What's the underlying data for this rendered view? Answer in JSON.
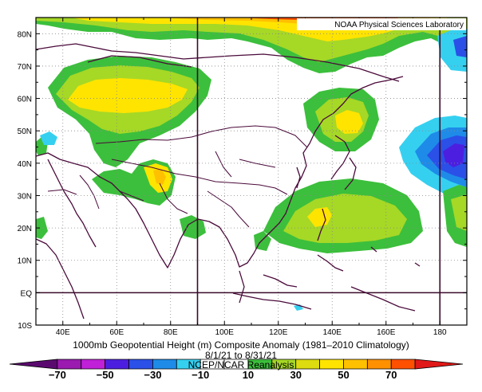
{
  "map": {
    "credit": "NOAA Physical Sciences Laboratory",
    "lon_labels": [
      "40E",
      "60E",
      "80E",
      "100E",
      "120E",
      "140E",
      "160E",
      "180"
    ],
    "lon_values": [
      40,
      60,
      80,
      100,
      120,
      140,
      160,
      180
    ],
    "lat_labels": [
      "80N",
      "70N",
      "60N",
      "50N",
      "40N",
      "30N",
      "20N",
      "10N",
      "EQ",
      "10S"
    ],
    "lat_values": [
      80,
      70,
      60,
      50,
      40,
      30,
      20,
      10,
      0,
      -10
    ],
    "lon_range": [
      30,
      190
    ],
    "lat_range": [
      -10,
      85
    ],
    "highlight_meridians": [
      90,
      180
    ],
    "highlight_parallel": 0
  },
  "caption": {
    "title": "1000mb Geopotential Height (m) Composite Anomaly (1981–2010 Climatology)",
    "dates": "8/1/21  to 8/31/21",
    "source": "NCEP/NCAR Reanalysis"
  },
  "colorbar": {
    "colors": [
      "#5a0a6e",
      "#9b1ab0",
      "#c020d8",
      "#4c1fe0",
      "#2a50e8",
      "#1e8be8",
      "#35d0f0",
      "#ffffff",
      "#ffffff",
      "#3cbf3c",
      "#a6d826",
      "#dcdc10",
      "#ffe400",
      "#ffc000",
      "#ff9000",
      "#ff5000",
      "#e01818"
    ],
    "tick_labels": [
      "−70",
      "−50",
      "−30",
      "−10",
      "10",
      "30",
      "50",
      "70"
    ]
  }
}
